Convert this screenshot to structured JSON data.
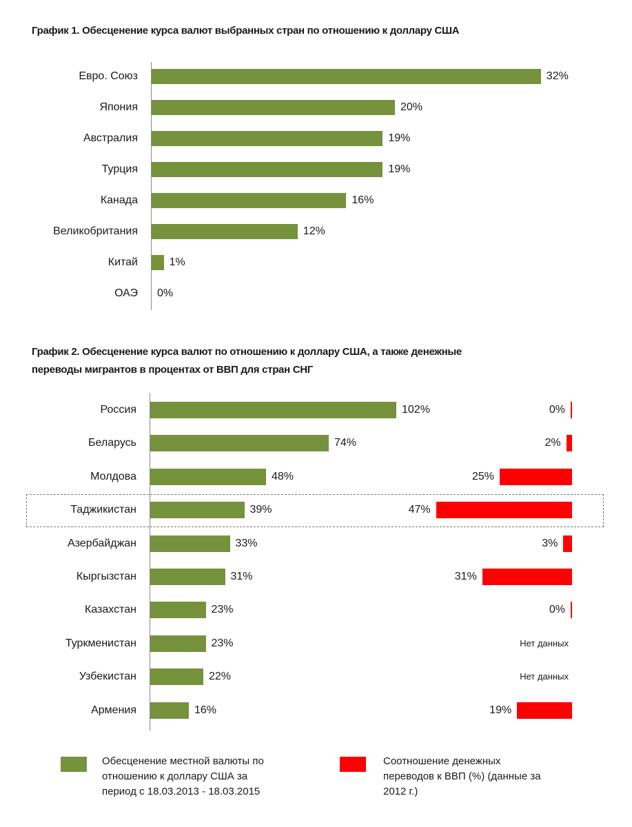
{
  "chart_data": [
    {
      "type": "bar",
      "title": "График 1. Обесценение курса валют выбранных стран  по отношению к доллару США",
      "categories": [
        "Евро. Союз",
        "Япония",
        "Австралия",
        "Турция",
        "Канада",
        "Великобритания",
        "Китай",
        "ОАЭ"
      ],
      "values": [
        32,
        20,
        19,
        19,
        16,
        12,
        1,
        0
      ],
      "labels": [
        "32%",
        "20%",
        "19%",
        "19%",
        "16%",
        "12%",
        "1%",
        "0%"
      ],
      "color": "#76923c"
    },
    {
      "type": "bar",
      "title_line1": "График 2.  Обесценение курса валют по отношению к доллару США, а также денежные",
      "title_line2": "переводы мигрантов в процентах от ВВП  для стран СНГ",
      "categories": [
        "Россия",
        "Беларусь",
        "Молдова",
        "Таджикистан",
        "Азербайджан",
        "Кыргызстан",
        "Казахстан",
        "Туркменистан",
        "Узбекистан",
        "Армения"
      ],
      "highlighted": "Таджикистан",
      "series": [
        {
          "name": "Обесценение местной валюты по отношению к доллару США за период с 18.03.2013 - 18.03.2015",
          "color": "#76923c",
          "values": [
            102,
            74,
            48,
            39,
            33,
            31,
            23,
            23,
            22,
            16
          ],
          "labels": [
            "102%",
            "74%",
            "48%",
            "39%",
            "33%",
            "31%",
            "23%",
            "23%",
            "22%",
            "16%"
          ]
        },
        {
          "name": "Соотношение денежных переводов к ВВП (%) (данные за 2012 г.)",
          "color": "#ff0000",
          "values": [
            0,
            2,
            25,
            47,
            3,
            31,
            0,
            null,
            null,
            19
          ],
          "labels": [
            "0%",
            "2%",
            "25%",
            "47%",
            "3%",
            "31%",
            "0%",
            "Нет данных",
            "Нет данных",
            "19%"
          ]
        }
      ],
      "legend": [
        {
          "lines": [
            "Обесценение местной валюты по",
            "отношению к доллару США за",
            "период с 18.03.2013 - 18.03.2015"
          ],
          "color": "#76923c"
        },
        {
          "lines": [
            "Соотношение денежных",
            "переводов к ВВП (%) (данные за",
            "2012 г.)"
          ],
          "color": "#ff0000"
        }
      ]
    }
  ]
}
